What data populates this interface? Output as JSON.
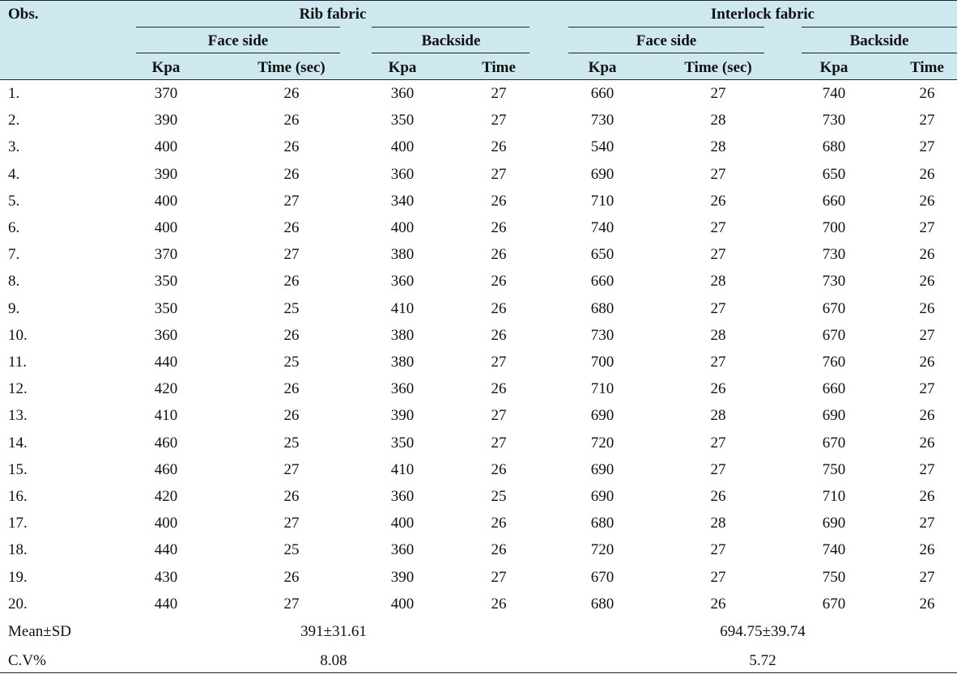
{
  "table": {
    "obs_header": "Obs.",
    "groups": [
      "Rib fabric",
      "Interlock fabric"
    ],
    "subgroups": [
      "Face side",
      "Backside",
      "Face side",
      "Backside"
    ],
    "columns": [
      "Kpa",
      "Time (sec)",
      "Kpa",
      "Time",
      "Kpa",
      "Time (sec)",
      "Kpa",
      "Time"
    ],
    "rows": [
      [
        "1.",
        "370",
        "26",
        "360",
        "27",
        "660",
        "27",
        "740",
        "26"
      ],
      [
        "2.",
        "390",
        "26",
        "350",
        "27",
        "730",
        "28",
        "730",
        "27"
      ],
      [
        "3.",
        "400",
        "26",
        "400",
        "26",
        "540",
        "28",
        "680",
        "27"
      ],
      [
        "4.",
        "390",
        "26",
        "360",
        "27",
        "690",
        "27",
        "650",
        "26"
      ],
      [
        "5.",
        "400",
        "27",
        "340",
        "26",
        "710",
        "26",
        "660",
        "26"
      ],
      [
        "6.",
        "400",
        "26",
        "400",
        "26",
        "740",
        "27",
        "700",
        "27"
      ],
      [
        "7.",
        "370",
        "27",
        "380",
        "26",
        "650",
        "27",
        "730",
        "26"
      ],
      [
        "8.",
        "350",
        "26",
        "360",
        "26",
        "660",
        "28",
        "730",
        "26"
      ],
      [
        "9.",
        "350",
        "25",
        "410",
        "26",
        "680",
        "27",
        "670",
        "26"
      ],
      [
        "10.",
        "360",
        "26",
        "380",
        "26",
        "730",
        "28",
        "670",
        "27"
      ],
      [
        "11.",
        "440",
        "25",
        "380",
        "27",
        "700",
        "27",
        "760",
        "26"
      ],
      [
        "12.",
        "420",
        "26",
        "360",
        "26",
        "710",
        "26",
        "660",
        "27"
      ],
      [
        "13.",
        "410",
        "26",
        "390",
        "27",
        "690",
        "28",
        "690",
        "26"
      ],
      [
        "14.",
        "460",
        "25",
        "350",
        "27",
        "720",
        "27",
        "670",
        "26"
      ],
      [
        "15.",
        "460",
        "27",
        "410",
        "26",
        "690",
        "27",
        "750",
        "27"
      ],
      [
        "16.",
        "420",
        "26",
        "360",
        "25",
        "690",
        "26",
        "710",
        "26"
      ],
      [
        "17.",
        "400",
        "27",
        "400",
        "26",
        "680",
        "28",
        "690",
        "27"
      ],
      [
        "18.",
        "440",
        "25",
        "360",
        "26",
        "720",
        "27",
        "740",
        "26"
      ],
      [
        "19.",
        "430",
        "26",
        "390",
        "27",
        "670",
        "27",
        "750",
        "27"
      ],
      [
        "20.",
        "440",
        "27",
        "400",
        "26",
        "680",
        "26",
        "670",
        "26"
      ]
    ],
    "summary": [
      {
        "label": "Mean±SD",
        "rib": "391±31.61",
        "interlock": "694.75±39.74"
      },
      {
        "label": "C.V%",
        "rib": "8.08",
        "interlock": "5.72"
      }
    ]
  }
}
